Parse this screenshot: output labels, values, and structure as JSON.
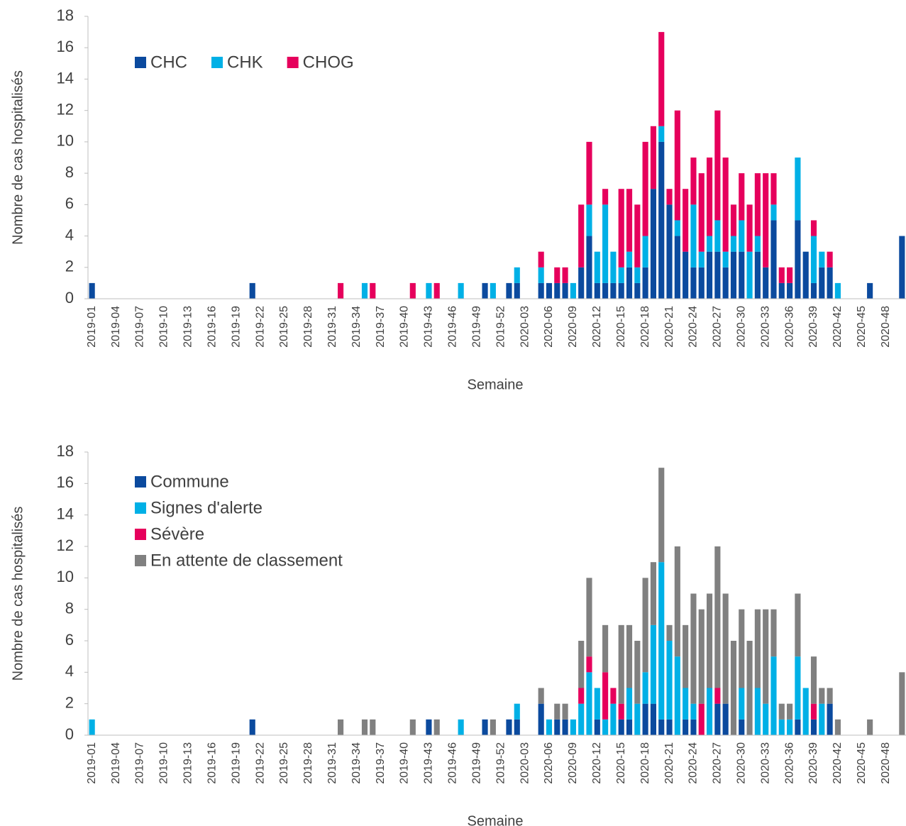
{
  "chart_data": [
    {
      "type": "bar",
      "stacked": true,
      "x_label": "Semaine",
      "y_label": "Nombre de cas hospitalisés",
      "ylim": [
        0,
        18
      ],
      "yticks": [
        0,
        2,
        4,
        6,
        8,
        10,
        12,
        14,
        16,
        18
      ],
      "grid": false,
      "legend": {
        "position": "top-left",
        "orientation": "horizontal"
      },
      "categories": [
        "2019-01",
        null,
        null,
        "2019-04",
        null,
        null,
        "2019-07",
        null,
        null,
        "2019-10",
        null,
        null,
        "2019-13",
        null,
        null,
        "2019-16",
        null,
        null,
        "2019-19",
        null,
        null,
        "2019-22",
        null,
        null,
        "2019-25",
        null,
        null,
        "2019-28",
        null,
        null,
        "2019-31",
        null,
        null,
        "2019-34",
        null,
        null,
        "2019-37",
        null,
        null,
        "2019-40",
        null,
        null,
        "2019-43",
        null,
        null,
        "2019-46",
        null,
        null,
        "2019-49",
        null,
        null,
        "2019-52",
        null,
        null,
        "2020-03",
        null,
        null,
        "2020-06",
        null,
        null,
        "2020-09",
        null,
        null,
        "2020-12",
        null,
        null,
        "2020-15",
        null,
        null,
        "2020-18",
        null,
        null,
        "2020-21",
        null,
        null,
        "2020-24",
        null,
        null,
        "2020-27",
        null,
        null,
        "2020-30",
        null,
        null,
        "2020-33",
        null,
        null,
        "2020-36",
        null,
        null,
        "2020-39",
        null,
        null,
        "2020-42",
        null,
        null,
        "2020-45",
        null,
        null,
        "2020-48",
        null,
        null
      ],
      "series": [
        {
          "name": "CHC",
          "color": "#0b4a9e",
          "values": [
            1,
            0,
            0,
            0,
            0,
            0,
            0,
            0,
            0,
            0,
            0,
            0,
            0,
            0,
            0,
            0,
            0,
            0,
            0,
            0,
            1,
            0,
            0,
            0,
            0,
            0,
            0,
            0,
            0,
            0,
            0,
            0,
            0,
            0,
            0,
            0,
            0,
            0,
            0,
            0,
            0,
            0,
            0,
            0,
            0,
            0,
            0,
            0,
            0,
            1,
            0,
            0,
            1,
            1,
            0,
            0,
            1,
            1,
            1,
            1,
            0,
            2,
            4,
            1,
            1,
            1,
            1,
            2,
            1,
            2,
            7,
            10,
            6,
            4,
            3,
            2,
            2,
            3,
            3,
            2,
            3,
            3,
            0,
            3,
            2,
            5,
            1,
            1,
            5,
            3,
            1,
            2,
            2,
            0,
            0,
            0,
            0,
            1,
            0,
            0,
            0,
            4
          ]
        },
        {
          "name": "CHK",
          "color": "#00b0e6",
          "values": [
            0,
            0,
            0,
            0,
            0,
            0,
            0,
            0,
            0,
            0,
            0,
            0,
            0,
            0,
            0,
            0,
            0,
            0,
            0,
            0,
            0,
            0,
            0,
            0,
            0,
            0,
            0,
            0,
            0,
            0,
            0,
            0,
            0,
            0,
            1,
            0,
            0,
            0,
            0,
            0,
            0,
            0,
            1,
            0,
            0,
            0,
            1,
            0,
            0,
            0,
            1,
            0,
            0,
            1,
            0,
            0,
            1,
            0,
            0,
            0,
            1,
            0,
            2,
            2,
            5,
            2,
            1,
            1,
            1,
            2,
            0,
            1,
            0,
            1,
            0,
            4,
            1,
            1,
            2,
            1,
            1,
            2,
            3,
            1,
            0,
            1,
            0,
            0,
            4,
            0,
            3,
            1,
            0,
            1,
            0,
            0,
            0,
            0,
            0,
            0,
            0,
            0
          ]
        },
        {
          "name": "CHOG",
          "color": "#e6005c",
          "values": [
            0,
            0,
            0,
            0,
            0,
            0,
            0,
            0,
            0,
            0,
            0,
            0,
            0,
            0,
            0,
            0,
            0,
            0,
            0,
            0,
            0,
            0,
            0,
            0,
            0,
            0,
            0,
            0,
            0,
            0,
            0,
            1,
            0,
            0,
            0,
            1,
            0,
            0,
            0,
            0,
            1,
            0,
            0,
            1,
            0,
            0,
            0,
            0,
            0,
            0,
            0,
            0,
            0,
            0,
            0,
            0,
            1,
            0,
            1,
            1,
            0,
            4,
            4,
            0,
            1,
            0,
            5,
            4,
            4,
            6,
            4,
            6,
            1,
            7,
            4,
            3,
            5,
            5,
            7,
            6,
            2,
            3,
            3,
            4,
            6,
            2,
            1,
            1,
            0,
            0,
            1,
            0,
            1,
            0,
            0,
            0,
            0,
            0,
            0,
            0,
            0,
            0
          ]
        }
      ]
    },
    {
      "type": "bar",
      "stacked": true,
      "x_label": "Semaine",
      "y_label": "Nombre de cas hospitalisés",
      "ylim": [
        0,
        18
      ],
      "yticks": [
        0,
        2,
        4,
        6,
        8,
        10,
        12,
        14,
        16,
        18
      ],
      "grid": false,
      "legend": {
        "position": "top-left",
        "orientation": "vertical"
      },
      "categories": [
        "2019-01",
        null,
        null,
        "2019-04",
        null,
        null,
        "2019-07",
        null,
        null,
        "2019-10",
        null,
        null,
        "2019-13",
        null,
        null,
        "2019-16",
        null,
        null,
        "2019-19",
        null,
        null,
        "2019-22",
        null,
        null,
        "2019-25",
        null,
        null,
        "2019-28",
        null,
        null,
        "2019-31",
        null,
        null,
        "2019-34",
        null,
        null,
        "2019-37",
        null,
        null,
        "2019-40",
        null,
        null,
        "2019-43",
        null,
        null,
        "2019-46",
        null,
        null,
        "2019-49",
        null,
        null,
        "2019-52",
        null,
        null,
        "2020-03",
        null,
        null,
        "2020-06",
        null,
        null,
        "2020-09",
        null,
        null,
        "2020-12",
        null,
        null,
        "2020-15",
        null,
        null,
        "2020-18",
        null,
        null,
        "2020-21",
        null,
        null,
        "2020-24",
        null,
        null,
        "2020-27",
        null,
        null,
        "2020-30",
        null,
        null,
        "2020-33",
        null,
        null,
        "2020-36",
        null,
        null,
        "2020-39",
        null,
        null,
        "2020-42",
        null,
        null,
        "2020-45",
        null,
        null,
        "2020-48",
        null,
        null
      ],
      "series": [
        {
          "name": "Commune",
          "color": "#0b4a9e",
          "values": [
            0,
            0,
            0,
            0,
            0,
            0,
            0,
            0,
            0,
            0,
            0,
            0,
            0,
            0,
            0,
            0,
            0,
            0,
            0,
            0,
            1,
            0,
            0,
            0,
            0,
            0,
            0,
            0,
            0,
            0,
            0,
            0,
            0,
            0,
            0,
            0,
            0,
            0,
            0,
            0,
            0,
            0,
            1,
            0,
            0,
            0,
            0,
            0,
            0,
            1,
            0,
            0,
            1,
            1,
            0,
            0,
            2,
            0,
            1,
            1,
            0,
            0,
            0,
            1,
            0,
            0,
            1,
            1,
            0,
            2,
            2,
            1,
            1,
            0,
            1,
            1,
            0,
            0,
            2,
            2,
            0,
            1,
            0,
            0,
            0,
            0,
            0,
            0,
            1,
            0,
            1,
            0,
            2,
            0,
            0,
            0,
            0,
            0,
            0,
            0,
            0,
            0
          ]
        },
        {
          "name": "Signes d'alerte",
          "color": "#00b0e6",
          "values": [
            1,
            0,
            0,
            0,
            0,
            0,
            0,
            0,
            0,
            0,
            0,
            0,
            0,
            0,
            0,
            0,
            0,
            0,
            0,
            0,
            0,
            0,
            0,
            0,
            0,
            0,
            0,
            0,
            0,
            0,
            0,
            0,
            0,
            0,
            0,
            0,
            0,
            0,
            0,
            0,
            0,
            0,
            0,
            0,
            0,
            0,
            1,
            0,
            0,
            0,
            0,
            0,
            0,
            1,
            0,
            0,
            0,
            1,
            0,
            0,
            1,
            2,
            4,
            2,
            1,
            2,
            0,
            2,
            2,
            2,
            5,
            10,
            5,
            5,
            2,
            1,
            0,
            3,
            0,
            0,
            0,
            2,
            0,
            3,
            2,
            5,
            1,
            1,
            4,
            3,
            0,
            2,
            0,
            0,
            0,
            0,
            0,
            0,
            0,
            0,
            0,
            0
          ]
        },
        {
          "name": "Sévère",
          "color": "#e6005c",
          "values": [
            0,
            0,
            0,
            0,
            0,
            0,
            0,
            0,
            0,
            0,
            0,
            0,
            0,
            0,
            0,
            0,
            0,
            0,
            0,
            0,
            0,
            0,
            0,
            0,
            0,
            0,
            0,
            0,
            0,
            0,
            0,
            0,
            0,
            0,
            0,
            0,
            0,
            0,
            0,
            0,
            0,
            0,
            0,
            0,
            0,
            0,
            0,
            0,
            0,
            0,
            0,
            0,
            0,
            0,
            0,
            0,
            0,
            0,
            0,
            0,
            0,
            1,
            1,
            0,
            3,
            1,
            1,
            0,
            0,
            0,
            0,
            0,
            0,
            0,
            0,
            0,
            2,
            0,
            1,
            0,
            0,
            0,
            0,
            0,
            0,
            0,
            0,
            0,
            0,
            0,
            1,
            0,
            0,
            0,
            0,
            0,
            0,
            0,
            0,
            0,
            0,
            0
          ]
        },
        {
          "name": "En attente de classement",
          "color": "#808080",
          "values": [
            0,
            0,
            0,
            0,
            0,
            0,
            0,
            0,
            0,
            0,
            0,
            0,
            0,
            0,
            0,
            0,
            0,
            0,
            0,
            0,
            0,
            0,
            0,
            0,
            0,
            0,
            0,
            0,
            0,
            0,
            0,
            1,
            0,
            0,
            1,
            1,
            0,
            0,
            0,
            0,
            1,
            0,
            0,
            1,
            0,
            0,
            0,
            0,
            0,
            0,
            1,
            0,
            0,
            0,
            0,
            0,
            1,
            0,
            1,
            1,
            0,
            3,
            5,
            0,
            3,
            0,
            5,
            4,
            4,
            6,
            4,
            6,
            1,
            7,
            4,
            7,
            6,
            6,
            9,
            7,
            6,
            5,
            6,
            5,
            6,
            3,
            1,
            1,
            4,
            0,
            3,
            1,
            1,
            1,
            0,
            0,
            0,
            1,
            0,
            0,
            0,
            4
          ]
        }
      ]
    }
  ]
}
